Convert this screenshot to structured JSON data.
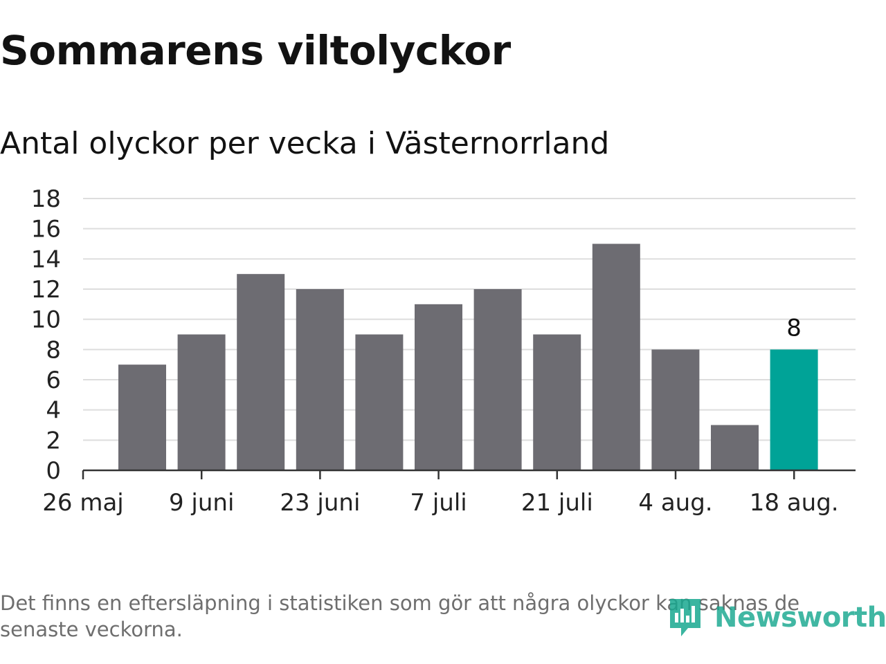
{
  "header": {
    "title": "Sommarens viltolyckor",
    "subtitle": "Antal olyckor per vecka i Västernorrland"
  },
  "chart_data": {
    "type": "bar",
    "x_tick_labels": [
      "26 maj",
      "9 juni",
      "23 juni",
      "7 juli",
      "21 juli",
      "4 aug.",
      "18 aug."
    ],
    "categories": [
      "2 juni",
      "9 juni",
      "16 juni",
      "23 juni",
      "30 juni",
      "7 juli",
      "14 juli",
      "21 juli",
      "28 juli",
      "4 aug.",
      "11 aug.",
      "18 aug."
    ],
    "values": [
      7,
      9,
      13,
      12,
      9,
      11,
      12,
      9,
      15,
      8,
      3,
      8
    ],
    "y_ticks": [
      0,
      2,
      4,
      6,
      8,
      10,
      12,
      14,
      16,
      18
    ],
    "ylim": [
      0,
      18
    ],
    "grid": true,
    "highlight_index": 11,
    "highlight_label": "8",
    "colors": {
      "bar": "#6d6c72",
      "highlight": "#00a397",
      "grid": "#dddddd",
      "axis": "#333333"
    }
  },
  "footer": {
    "note": "Det finns en eftersläpning i statistiken som gör att några olyckor kan saknas de senaste veckorna.",
    "brand": "Newsworthy",
    "brand_color": "#18a88f",
    "brand_icon": "newsworthy-logo-icon"
  }
}
